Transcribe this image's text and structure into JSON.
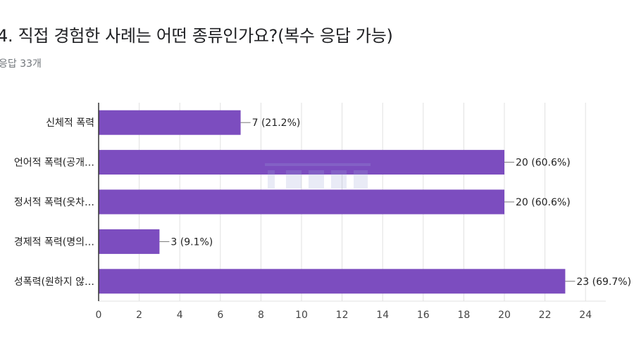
{
  "title": "4. 직접 경험한 사례는 어떤 종류인가요?(복수 응답 가능)",
  "response_count": "응답 33개",
  "colors": {
    "bar": "#7c4dbf",
    "grid": "#e0e0e0",
    "axis": "#333333"
  },
  "chart_data": {
    "type": "bar",
    "orientation": "horizontal",
    "categories": [
      "신체적 폭력",
      "언어적 폭력(공개…",
      "정서적 폭력(옷차…",
      "경제적 폭력(명의…",
      "성폭력(원하지 않…"
    ],
    "values": [
      7,
      20,
      20,
      3,
      23
    ],
    "data_labels": [
      "7 (21.2%)",
      "20 (60.6%)",
      "20 (60.6%)",
      "3 (9.1%)",
      "23 (69.7%)"
    ],
    "xlim": [
      0,
      25
    ],
    "xticks": [
      0,
      2,
      4,
      6,
      8,
      10,
      12,
      14,
      16,
      18,
      20,
      22,
      24
    ],
    "grid": true
  }
}
